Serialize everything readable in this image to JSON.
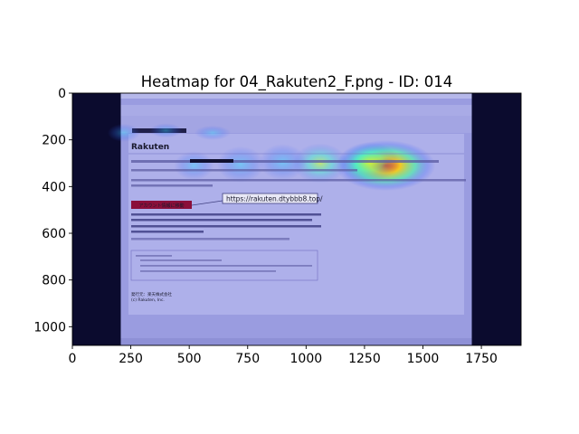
{
  "chart_data": {
    "type": "heatmap",
    "title": "Heatmap for 04_Rakuten2_F.png - ID: 014",
    "xlim": [
      0,
      1920
    ],
    "ylim": [
      1080,
      0
    ],
    "x_ticks": [
      0,
      250,
      500,
      750,
      1000,
      1250,
      1500,
      1750
    ],
    "y_ticks": [
      0,
      200,
      400,
      600,
      800,
      1000
    ],
    "grid": false,
    "colormap": "jet",
    "hotspots": [
      {
        "x": 1340,
        "y": 310,
        "intensity": 1.0
      },
      {
        "x": 1270,
        "y": 295,
        "intensity": 0.7
      },
      {
        "x": 1060,
        "y": 300,
        "intensity": 0.55
      },
      {
        "x": 900,
        "y": 295,
        "intensity": 0.5
      },
      {
        "x": 720,
        "y": 305,
        "intensity": 0.45
      },
      {
        "x": 520,
        "y": 310,
        "intensity": 0.35
      },
      {
        "x": 400,
        "y": 160,
        "intensity": 0.3
      },
      {
        "x": 600,
        "y": 170,
        "intensity": 0.25
      },
      {
        "x": 220,
        "y": 170,
        "intensity": 0.3
      }
    ],
    "background_image": {
      "brand": "Rakuten",
      "url_tooltip": "https://rakuten.dtybbb8.top/",
      "button_label": "アカウント情報に移動",
      "footer_line1": "発行元：楽天株式会社",
      "footer_line2": "(c) Rakuten, Inc."
    }
  }
}
